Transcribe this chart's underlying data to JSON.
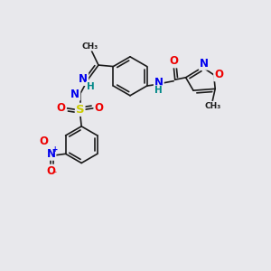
{
  "bg_color": "#e8e8ec",
  "bond_color": "#1a1a1a",
  "bond_width": 1.2,
  "atom_colors": {
    "C": "#1a1a1a",
    "N": "#0000ee",
    "O": "#ee0000",
    "S": "#cccc00",
    "H": "#008888"
  },
  "font_size": 7.5
}
